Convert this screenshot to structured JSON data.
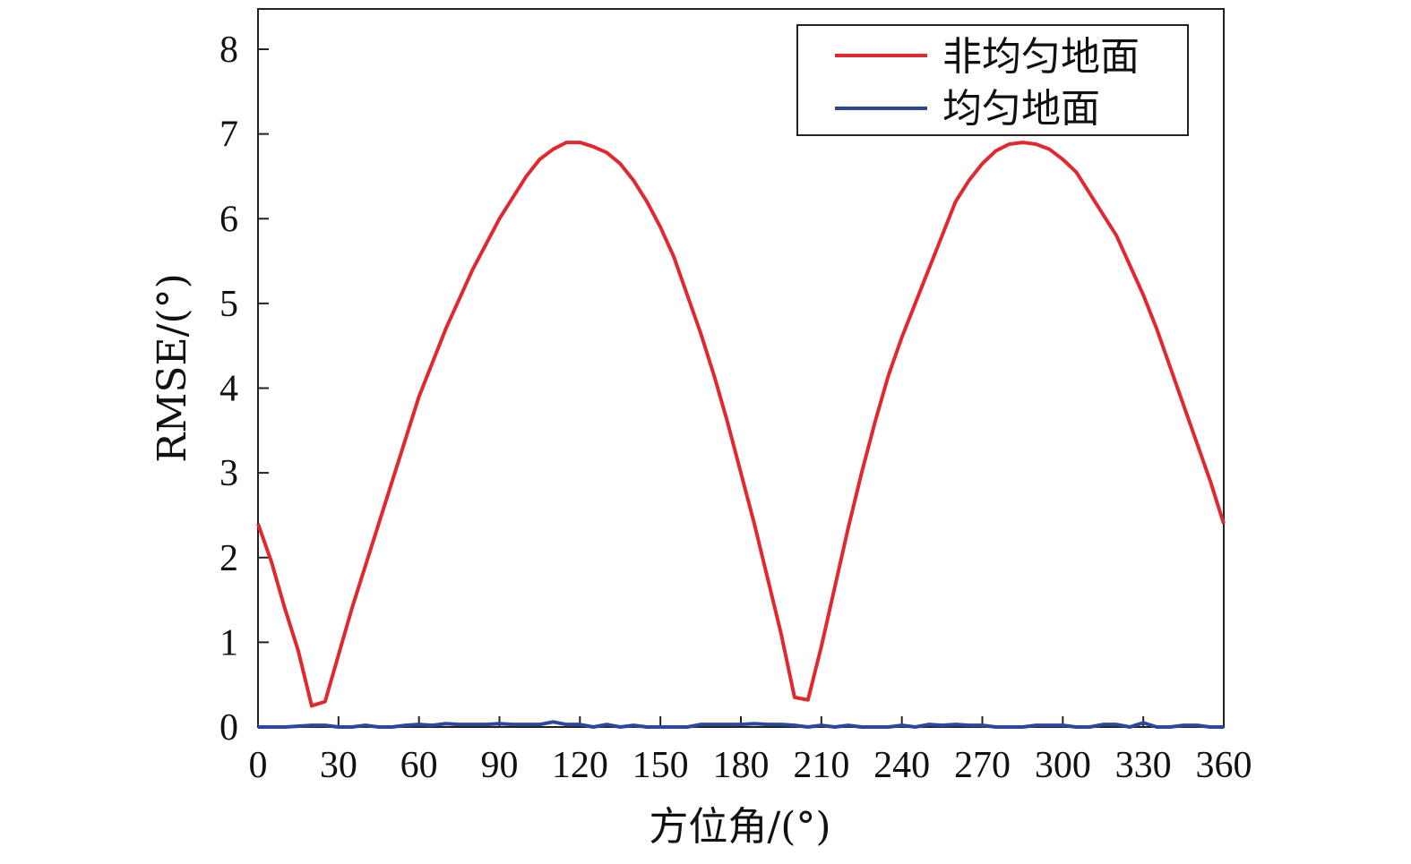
{
  "chart_data": {
    "type": "line",
    "title": "",
    "xlabel": "方位角/(°)",
    "ylabel": "RMSE/(°)",
    "xlim": [
      0,
      360
    ],
    "ylim": [
      0,
      8.5
    ],
    "xticks": [
      0,
      30,
      60,
      90,
      120,
      150,
      180,
      210,
      240,
      270,
      300,
      330,
      360
    ],
    "yticks": [
      0,
      1,
      2,
      3,
      4,
      5,
      6,
      7,
      8
    ],
    "grid": false,
    "legend_position": "top-right",
    "series": [
      {
        "name": "非均匀地面",
        "color": "#e0282e",
        "x": [
          0,
          5,
          10,
          15,
          20,
          25,
          30,
          35,
          40,
          45,
          50,
          55,
          60,
          65,
          70,
          75,
          80,
          85,
          90,
          95,
          100,
          105,
          110,
          115,
          120,
          125,
          130,
          135,
          140,
          145,
          150,
          155,
          160,
          165,
          170,
          175,
          180,
          185,
          190,
          195,
          200,
          205,
          210,
          215,
          220,
          225,
          230,
          235,
          240,
          245,
          250,
          255,
          260,
          265,
          270,
          275,
          280,
          285,
          290,
          295,
          300,
          305,
          310,
          315,
          320,
          325,
          330,
          335,
          340,
          345,
          350,
          355,
          360
        ],
        "values": [
          2.4,
          1.95,
          1.4,
          0.9,
          0.25,
          0.3,
          0.85,
          1.4,
          1.9,
          2.4,
          2.9,
          3.4,
          3.9,
          4.3,
          4.7,
          5.05,
          5.4,
          5.7,
          6.0,
          6.25,
          6.5,
          6.7,
          6.82,
          6.9,
          6.9,
          6.85,
          6.78,
          6.65,
          6.45,
          6.2,
          5.9,
          5.55,
          5.1,
          4.65,
          4.15,
          3.6,
          3.0,
          2.4,
          1.75,
          1.1,
          0.35,
          0.32,
          0.95,
          1.65,
          2.35,
          3.0,
          3.6,
          4.15,
          4.6,
          5.0,
          5.4,
          5.8,
          6.2,
          6.45,
          6.65,
          6.8,
          6.88,
          6.9,
          6.88,
          6.82,
          6.7,
          6.55,
          6.3,
          6.05,
          5.8,
          5.45,
          5.1,
          4.7,
          4.25,
          3.8,
          3.35,
          2.9,
          2.4
        ]
      },
      {
        "name": "均匀地面",
        "color": "#2b47a0",
        "x": [
          0,
          10,
          20,
          25,
          30,
          35,
          40,
          45,
          50,
          55,
          60,
          65,
          70,
          75,
          80,
          85,
          90,
          95,
          100,
          105,
          110,
          115,
          120,
          125,
          130,
          135,
          140,
          145,
          150,
          155,
          160,
          165,
          170,
          175,
          180,
          185,
          190,
          195,
          200,
          205,
          210,
          215,
          220,
          225,
          230,
          235,
          240,
          245,
          250,
          255,
          260,
          265,
          270,
          275,
          280,
          285,
          290,
          295,
          300,
          305,
          310,
          315,
          320,
          325,
          330,
          335,
          340,
          345,
          350,
          355,
          360
        ],
        "values": [
          0,
          0,
          0.02,
          0.02,
          0,
          0,
          0.02,
          0,
          0,
          0.02,
          0.03,
          0.02,
          0.04,
          0.03,
          0.03,
          0.03,
          0.04,
          0.03,
          0.03,
          0.03,
          0.06,
          0.03,
          0.03,
          0,
          0.03,
          0,
          0.02,
          0,
          0,
          0,
          0,
          0.03,
          0.03,
          0.03,
          0.03,
          0.04,
          0.03,
          0.03,
          0.02,
          0,
          0.02,
          0,
          0.02,
          0,
          0,
          0,
          0.02,
          0,
          0.03,
          0.02,
          0.03,
          0.02,
          0.02,
          0,
          0,
          0,
          0.02,
          0.02,
          0.02,
          0,
          0,
          0.03,
          0.03,
          0,
          0.05,
          0,
          0,
          0.02,
          0.02,
          0,
          0
        ]
      }
    ]
  }
}
